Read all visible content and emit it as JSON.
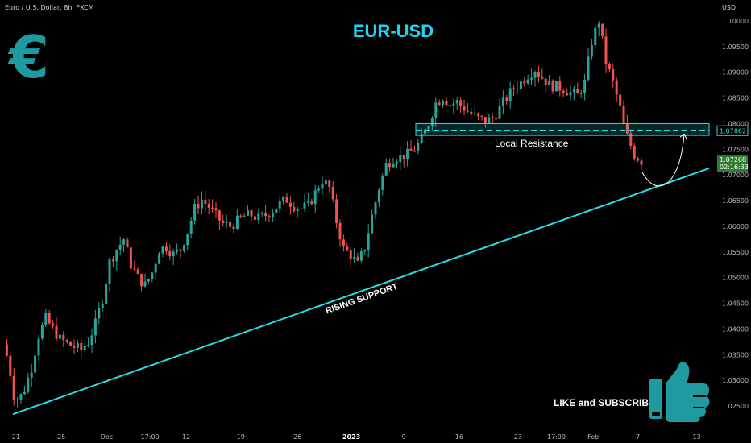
{
  "header": {
    "symbol_label": "Euro / U.S. Dollar, 8h, FXCM",
    "currency_label": "USD"
  },
  "chart_data": {
    "type": "candlestick",
    "title": "EUR-USD",
    "annotations": {
      "support_label": "RISING SUPPORT",
      "resistance_label": "Local Resistance",
      "cta_label": "LIKE and SUBSCRIBE",
      "logo_symbol": "€"
    },
    "price_badges": {
      "level": "1.07862",
      "last_price": "1.07268",
      "countdown": "02:16:33"
    },
    "y_ticks": [
      "1.10000",
      "1.09500",
      "1.09000",
      "1.08500",
      "1.08000",
      "1.07500",
      "1.07000",
      "1.06500",
      "1.06000",
      "1.05500",
      "1.05000",
      "1.04500",
      "1.04000",
      "1.03500",
      "1.03000",
      "1.02500"
    ],
    "x_ticks": [
      {
        "label": "21",
        "bold": false
      },
      {
        "label": "25",
        "bold": false
      },
      {
        "label": "Dec",
        "bold": false
      },
      {
        "label": "17:00",
        "bold": false
      },
      {
        "label": "12",
        "bold": false
      },
      {
        "label": "19",
        "bold": false
      },
      {
        "label": "26",
        "bold": false
      },
      {
        "label": "2023",
        "bold": true
      },
      {
        "label": "9",
        "bold": false
      },
      {
        "label": "16",
        "bold": false
      },
      {
        "label": "23",
        "bold": false
      },
      {
        "label": "17:00",
        "bold": false
      },
      {
        "label": "Feb",
        "bold": false
      },
      {
        "label": "7",
        "bold": false
      },
      {
        "label": "13",
        "bold": false
      }
    ],
    "ylim": [
      1.0218,
      1.1026
    ],
    "support_line": {
      "start": [
        0,
        1.0234
      ],
      "end": [
        1,
        1.0713
      ]
    },
    "resistance_zone": {
      "top": 1.08,
      "bottom": 1.0777,
      "level": 1.07862
    },
    "waypoints": [
      [
        0.0,
        1.037
      ],
      [
        0.008,
        1.0335
      ],
      [
        0.014,
        1.0272
      ],
      [
        0.022,
        1.0262
      ],
      [
        0.03,
        1.0283
      ],
      [
        0.04,
        1.0325
      ],
      [
        0.05,
        1.0388
      ],
      [
        0.06,
        1.042
      ],
      [
        0.07,
        1.04
      ],
      [
        0.08,
        1.038
      ],
      [
        0.09,
        1.0372
      ],
      [
        0.1,
        1.0365
      ],
      [
        0.11,
        1.036
      ],
      [
        0.12,
        1.0375
      ],
      [
        0.13,
        1.041
      ],
      [
        0.14,
        1.046
      ],
      [
        0.15,
        1.053
      ],
      [
        0.16,
        1.0555
      ],
      [
        0.17,
        1.0575
      ],
      [
        0.18,
        1.0525
      ],
      [
        0.19,
        1.05
      ],
      [
        0.2,
        1.0485
      ],
      [
        0.21,
        1.051
      ],
      [
        0.22,
        1.0555
      ],
      [
        0.23,
        1.056
      ],
      [
        0.24,
        1.0545
      ],
      [
        0.25,
        1.0555
      ],
      [
        0.26,
        1.059
      ],
      [
        0.27,
        1.0635
      ],
      [
        0.28,
        1.0652
      ],
      [
        0.29,
        1.0638
      ],
      [
        0.3,
        1.062
      ],
      [
        0.31,
        1.0605
      ],
      [
        0.32,
        1.06
      ],
      [
        0.33,
        1.061
      ],
      [
        0.34,
        1.062
      ],
      [
        0.35,
        1.0622
      ],
      [
        0.36,
        1.0615
      ],
      [
        0.37,
        1.0622
      ],
      [
        0.38,
        1.0632
      ],
      [
        0.39,
        1.0645
      ],
      [
        0.4,
        1.0652
      ],
      [
        0.41,
        1.064
      ],
      [
        0.42,
        1.0635
      ],
      [
        0.43,
        1.064
      ],
      [
        0.44,
        1.0665
      ],
      [
        0.45,
        1.069
      ],
      [
        0.46,
        1.0675
      ],
      [
        0.47,
        1.061
      ],
      [
        0.48,
        1.0555
      ],
      [
        0.49,
        1.0545
      ],
      [
        0.5,
        1.0525
      ],
      [
        0.51,
        1.056
      ],
      [
        0.52,
        1.062
      ],
      [
        0.53,
        1.0675
      ],
      [
        0.54,
        1.072
      ],
      [
        0.55,
        1.0733
      ],
      [
        0.56,
        1.0735
      ],
      [
        0.57,
        1.074
      ],
      [
        0.58,
        1.075
      ],
      [
        0.59,
        1.077
      ],
      [
        0.6,
        1.08
      ],
      [
        0.61,
        1.084
      ],
      [
        0.62,
        1.0852
      ],
      [
        0.63,
        1.0838
      ],
      [
        0.64,
        1.0842
      ],
      [
        0.65,
        1.083
      ],
      [
        0.66,
        1.0818
      ],
      [
        0.67,
        1.081
      ],
      [
        0.68,
        1.0805
      ],
      [
        0.69,
        1.081
      ],
      [
        0.7,
        1.083
      ],
      [
        0.71,
        1.085
      ],
      [
        0.72,
        1.087
      ],
      [
        0.73,
        1.088
      ],
      [
        0.74,
        1.0895
      ],
      [
        0.75,
        1.0905
      ],
      [
        0.76,
        1.089
      ],
      [
        0.77,
        1.0875
      ],
      [
        0.78,
        1.0872
      ],
      [
        0.79,
        1.0868
      ],
      [
        0.8,
        1.086
      ],
      [
        0.81,
        1.0855
      ],
      [
        0.82,
        1.088
      ],
      [
        0.83,
        1.096
      ],
      [
        0.84,
        1.1
      ],
      [
        0.85,
        1.092
      ],
      [
        0.86,
        1.088
      ],
      [
        0.87,
        1.083
      ],
      [
        0.875,
        1.0795
      ],
      [
        0.88,
        1.0775
      ],
      [
        0.89,
        1.074
      ],
      [
        0.9,
        1.0727
      ]
    ]
  },
  "colors": {
    "background": "#000000",
    "up": "#26a69a",
    "down": "#ef5350",
    "accent": "#26e0e6",
    "title": "#22d3ee",
    "logo": "#1e9aa0",
    "thumb": "#1e9aa0",
    "text": "#d1d4dc",
    "last_badge": "#2e7d32"
  },
  "icons": {
    "logo": "euro-icon",
    "cta": "thumbs-up-icon"
  }
}
